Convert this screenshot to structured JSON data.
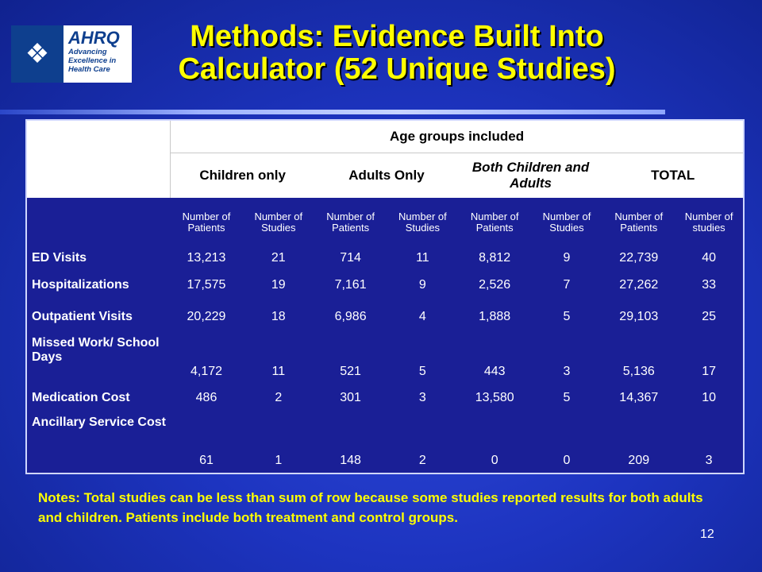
{
  "logo": {
    "brand": "AHRQ",
    "tagline": [
      "Advancing",
      "Excellence in",
      "Health Care"
    ]
  },
  "title": {
    "line1": "Methods:  Evidence Built Into",
    "line2": "Calculator (52 Unique Studies)"
  },
  "table": {
    "super_header": "Age groups included",
    "groups": [
      {
        "label": "Children only",
        "italic": false
      },
      {
        "label": "Adults Only",
        "italic": false
      },
      {
        "label": "Both Children and Adults",
        "italic": true
      },
      {
        "label": "TOTAL",
        "italic": false
      }
    ],
    "subheaders": [
      "Number of Patients",
      "Number of Studies",
      "Number of Patients",
      "Number of Studies",
      "Number of Patients",
      "Number of Studies",
      "Number of Patients",
      "Number of studies"
    ],
    "rows": [
      {
        "label": "ED Visits",
        "values": [
          "13,213",
          "21",
          "714",
          "11",
          "8,812",
          "9",
          "22,739",
          "40"
        ]
      },
      {
        "label": "Hospitalizations",
        "values": [
          "17,575",
          "19",
          "7,161",
          "9",
          "2,526",
          "7",
          "27,262",
          "33"
        ]
      },
      {
        "label": "Outpatient Visits",
        "values": [
          "20,229",
          "18",
          "6,986",
          "4",
          "1,888",
          "5",
          "29,103",
          "25"
        ]
      },
      {
        "label": "Missed Work/ School Days",
        "values": [
          "4,172",
          "11",
          "521",
          "5",
          "443",
          "3",
          "5,136",
          "17"
        ]
      },
      {
        "label": "Medication Cost",
        "values": [
          "486",
          "2",
          "301",
          "3",
          "13,580",
          "5",
          "14,367",
          "10"
        ]
      },
      {
        "label": "Ancillary Service Cost",
        "values": [
          "61",
          "1",
          "148",
          "2",
          "0",
          "0",
          "209",
          "3"
        ]
      }
    ]
  },
  "notes": "Notes: Total studies can be less than sum of row because some studies reported results for both adults and children.  Patients include both treatment and control groups.",
  "page_number": "12",
  "colors": {
    "title": "#ffff00",
    "table_body": "#1a1f96",
    "background": "#1d34c0"
  }
}
